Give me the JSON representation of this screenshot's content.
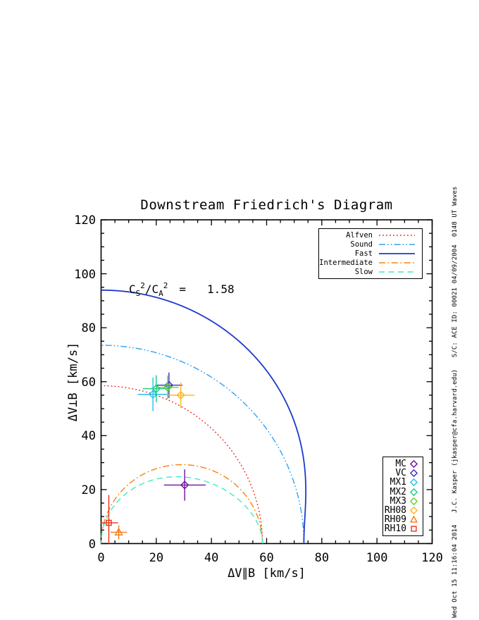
{
  "title": "Downstream Friedrich's Diagram",
  "annotation": {
    "lhs": "C",
    "lhs_sub": "S",
    "lhs_sup": "2",
    "mid": "/C",
    "mid_sub": "A",
    "mid_sup": "2",
    "equals": "=",
    "value": "1.58"
  },
  "axes": {
    "x": {
      "label": "ΔV∥B [km/s]",
      "min": 0,
      "max": 120,
      "major_ticks": [
        0,
        20,
        40,
        60,
        80,
        100,
        120
      ],
      "minor_step": 5
    },
    "y": {
      "label": "ΔV⊥B [km/s]",
      "min": 0,
      "max": 120,
      "major_ticks": [
        0,
        20,
        40,
        60,
        80,
        100,
        120
      ],
      "minor_step": 5
    }
  },
  "caption_vertical": "Wed Oct 15 11:16:04 2014   J.C. Kasper (jkasper@cfa.harvard.edu)   S/C: ACE ID: 00021 04/09/2004  0148 UT Waves",
  "chart_data": {
    "type": "line",
    "title": "Downstream Friedrich's Diagram",
    "xlabel": "ΔV∥B [km/s]",
    "ylabel": "ΔV⊥B [km/s]",
    "xlim": [
      0,
      120
    ],
    "ylim": [
      0,
      120
    ],
    "grid": false,
    "sound_to_alfven_speed_ratio_squared": 1.58,
    "alfven_speed_kms": 58.5,
    "sound_speed_kms": 73.5,
    "fast_perpendicular_speed_kms": 94.0,
    "curves": [
      {
        "label": "Alfven",
        "kind": "circle_alfven",
        "color": "#E8251C",
        "dash": "1.8,3.2",
        "width": 1.4
      },
      {
        "label": "Sound",
        "kind": "circle_sound",
        "color": "#2FA3F7",
        "dash": "9,3,1.8,3,1.8,3",
        "width": 1.4
      },
      {
        "label": "Fast",
        "kind": "fast",
        "color": "#1C39CE",
        "dash": "",
        "width": 1.8
      },
      {
        "label": "Intermediate",
        "kind": "intermediate",
        "color": "#F8820D",
        "dash": "9,3.5,1.8,3.5",
        "width": 1.4
      },
      {
        "label": "Slow",
        "kind": "slow",
        "color": "#3EECC4",
        "dash": "8,5.5",
        "width": 1.4
      }
    ],
    "points": [
      {
        "name": "MC",
        "marker": "diamond",
        "color": "#70109E",
        "x": 30.3,
        "y": 21.7,
        "xerr_lo": 7.5,
        "xerr_hi": 7.6,
        "yerr_lo": 5.8,
        "yerr_hi": 5.8
      },
      {
        "name": "VC",
        "marker": "diamond",
        "color": "#3F2ACD",
        "x": 24.6,
        "y": 58.7,
        "xerr_lo": 4.9,
        "xerr_hi": 4.9,
        "yerr_lo": 4.7,
        "yerr_hi": 4.7
      },
      {
        "name": "MX1",
        "marker": "diamond",
        "color": "#25C0EE",
        "x": 18.8,
        "y": 55.3,
        "xerr_lo": 5.5,
        "xerr_hi": 5.5,
        "yerr_lo": 6.2,
        "yerr_hi": 6.2
      },
      {
        "name": "MX2",
        "marker": "diamond",
        "color": "#16CE83",
        "x": 20.0,
        "y": 57.4,
        "xerr_lo": 4.9,
        "xerr_hi": 4.9,
        "yerr_lo": 5.0,
        "yerr_hi": 5.0
      },
      {
        "name": "MX3",
        "marker": "diamond",
        "color": "#5FD32F",
        "x": 24.1,
        "y": 57.9,
        "xerr_lo": 4.0,
        "xerr_hi": 4.0,
        "yerr_lo": 4.4,
        "yerr_hi": 4.4
      },
      {
        "name": "RH08",
        "marker": "diamond",
        "color": "#FFB31A",
        "x": 28.9,
        "y": 55.0,
        "xerr_lo": 5.0,
        "xerr_hi": 5.0,
        "yerr_lo": 4.7,
        "yerr_hi": 4.7
      },
      {
        "name": "RH09",
        "marker": "triangle",
        "color": "#F87A12",
        "x": 6.4,
        "y": 4.2,
        "xerr_lo": 3.0,
        "xerr_hi": 3.0,
        "yerr_lo": 2.6,
        "yerr_hi": 2.6
      },
      {
        "name": "RH10",
        "marker": "square",
        "color": "#F0301A",
        "x": 2.8,
        "y": 7.7,
        "xerr_lo": 3.0,
        "xerr_hi": 3.4,
        "yerr_lo": 7.7,
        "yerr_hi": 10.3
      }
    ]
  }
}
